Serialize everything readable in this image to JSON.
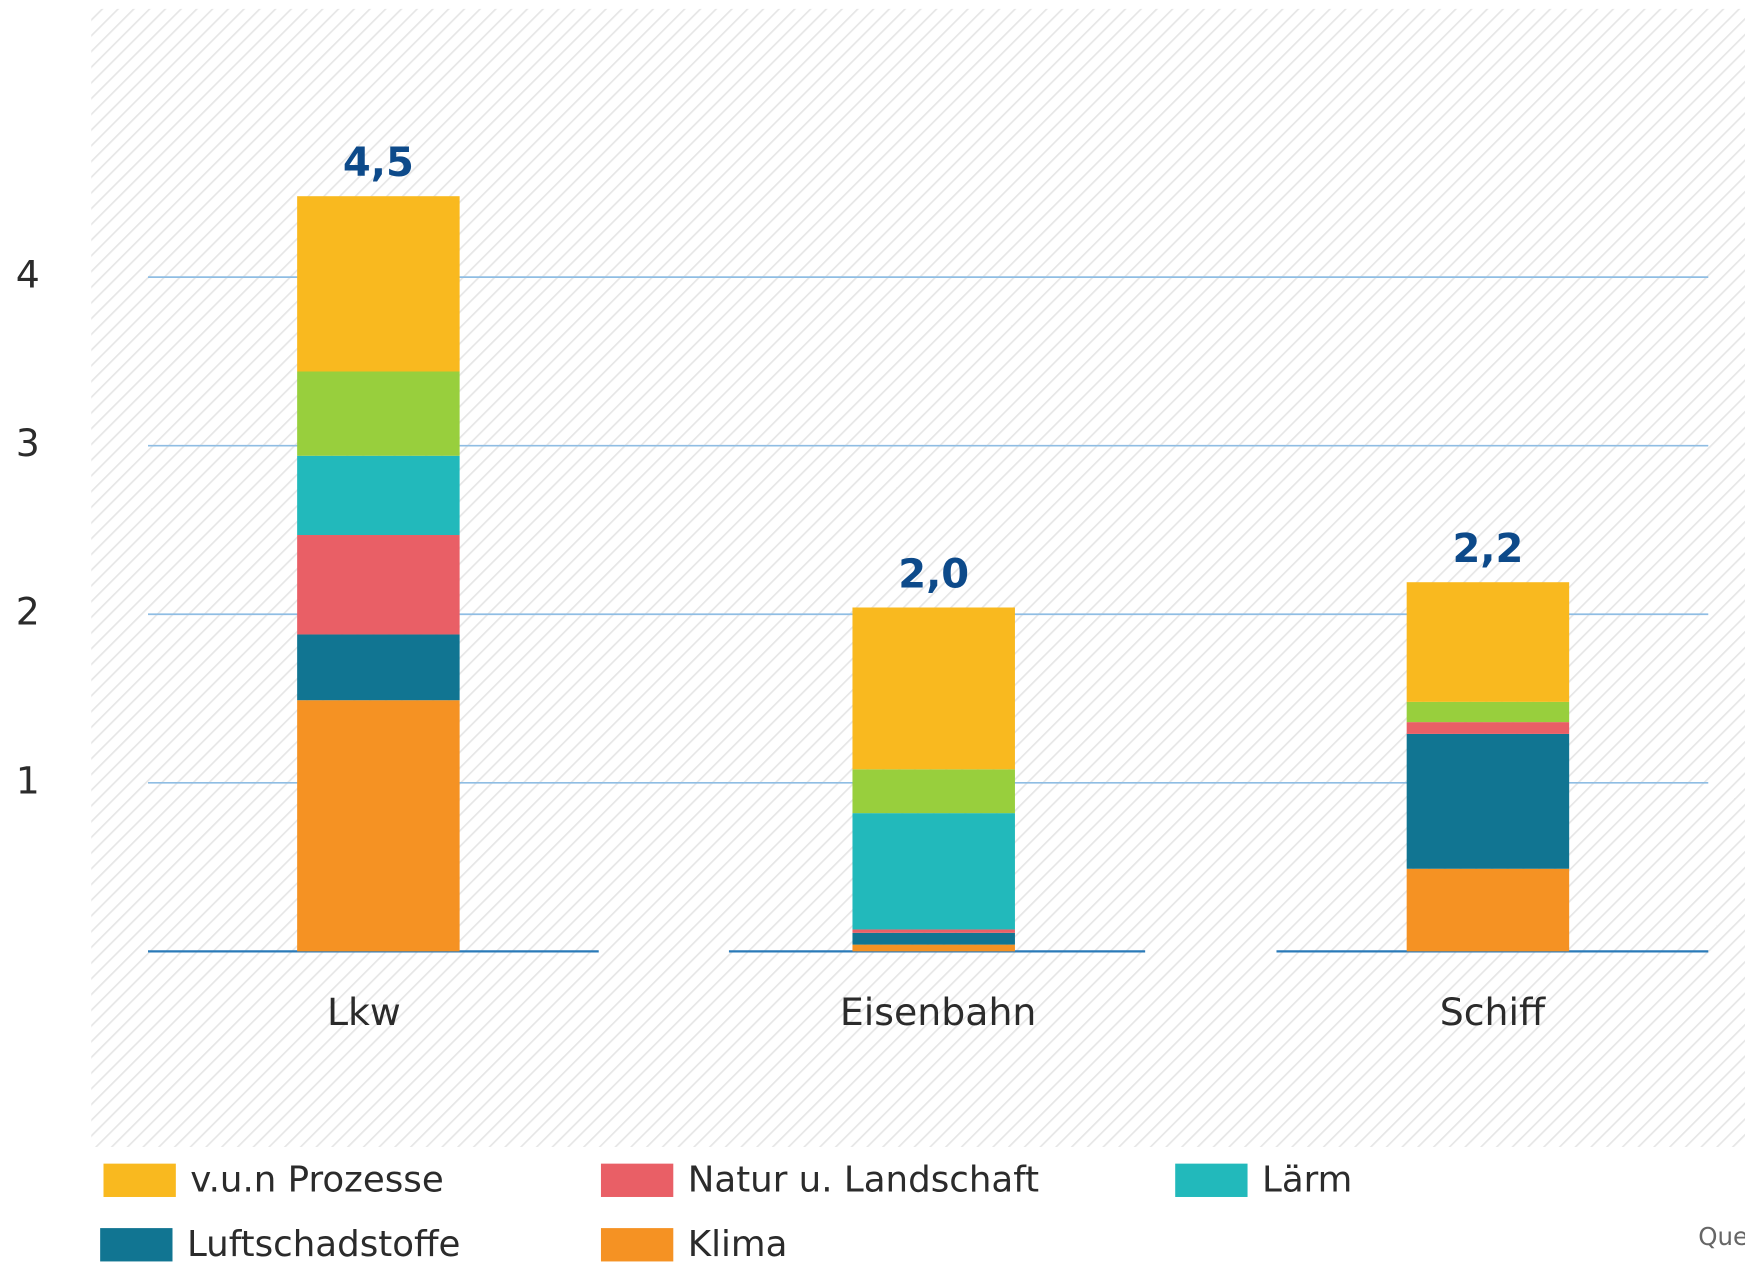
{
  "chart_data": {
    "type": "stacked_bar",
    "categories": [
      "Lkw",
      "Eisenbahn",
      "Schiff"
    ],
    "series": [
      {
        "name": "Klima",
        "color": "#f59223",
        "values": [
          1.49,
          0.04,
          0.49
        ]
      },
      {
        "name": "Luftschadstoffe",
        "color": "#117592",
        "values": [
          0.39,
          0.07,
          0.8
        ]
      },
      {
        "name": "Natur u. Landschaft",
        "color": "#e95f66",
        "values": [
          0.59,
          0.02,
          0.07
        ]
      },
      {
        "name": "Lärm",
        "color": "#22b9bb",
        "values": [
          0.47,
          0.69,
          0
        ]
      },
      {
        "color": "#98cf3d",
        "values": [
          0.5,
          0.26,
          0.12
        ]
      },
      {
        "name": "v.u.n Prozesse",
        "color": "#f9b91f",
        "values": [
          1.04,
          0.96,
          0.71
        ]
      }
    ],
    "totals": [
      4.5,
      2.0,
      2.2
    ],
    "totals_labels": [
      "4,5",
      "2,0",
      "2,2"
    ],
    "ylim": [
      0,
      4.8
    ],
    "yticks": [
      1,
      2,
      3,
      4
    ],
    "grid": true,
    "source": "Quel"
  }
}
